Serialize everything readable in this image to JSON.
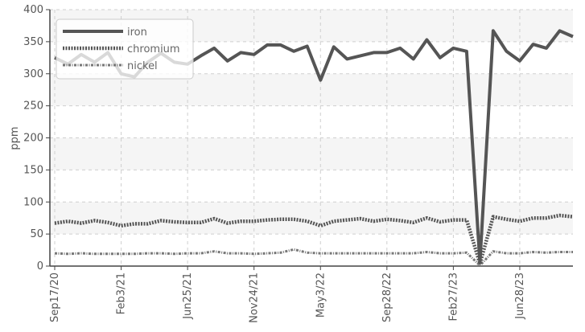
{
  "chart_data": {
    "type": "line",
    "title": "",
    "xlabel": "",
    "ylabel": "ppm",
    "ylim": [
      0,
      400
    ],
    "yticks": [
      0,
      50,
      100,
      150,
      200,
      250,
      300,
      350,
      400
    ],
    "xlim_index": [
      0,
      41
    ],
    "xticks": [
      {
        "index": 0,
        "label": "Sep17/20"
      },
      {
        "index": 5,
        "label": "Feb3/21"
      },
      {
        "index": 10,
        "label": "Jun25/21"
      },
      {
        "index": 15,
        "label": "Nov24/21"
      },
      {
        "index": 20,
        "label": "May3/22"
      },
      {
        "index": 25,
        "label": "Sep28/22"
      },
      {
        "index": 30,
        "label": "Feb27/23"
      },
      {
        "index": 35,
        "label": "Jun28/23"
      }
    ],
    "grid": true,
    "legend_position": "top-left",
    "series": [
      {
        "name": "iron",
        "color": "#555555",
        "style": "solid",
        "values": [
          325,
          315,
          330,
          318,
          333,
          300,
          295,
          318,
          332,
          318,
          315,
          328,
          340,
          320,
          333,
          330,
          345,
          345,
          335,
          343,
          290,
          342,
          323,
          328,
          333,
          333,
          340,
          323,
          353,
          325,
          340,
          335,
          5,
          367,
          335,
          320,
          346,
          340,
          367,
          358
        ]
      },
      {
        "name": "chromium",
        "color": "#555555",
        "style": "dotted",
        "values": [
          67,
          70,
          67,
          71,
          68,
          63,
          66,
          66,
          71,
          69,
          68,
          68,
          74,
          67,
          70,
          70,
          72,
          73,
          73,
          70,
          63,
          70,
          72,
          74,
          70,
          73,
          71,
          68,
          75,
          69,
          72,
          72,
          4,
          77,
          73,
          70,
          75,
          75,
          79,
          77
        ]
      },
      {
        "name": "nickel",
        "color": "#777777",
        "style": "dashdot",
        "values": [
          20,
          19,
          20,
          19,
          19,
          19,
          19,
          20,
          20,
          19,
          20,
          20,
          23,
          20,
          20,
          19,
          20,
          21,
          26,
          21,
          20,
          20,
          20,
          20,
          20,
          20,
          20,
          20,
          22,
          20,
          20,
          21,
          1,
          23,
          20,
          20,
          22,
          21,
          22,
          22
        ]
      }
    ]
  }
}
